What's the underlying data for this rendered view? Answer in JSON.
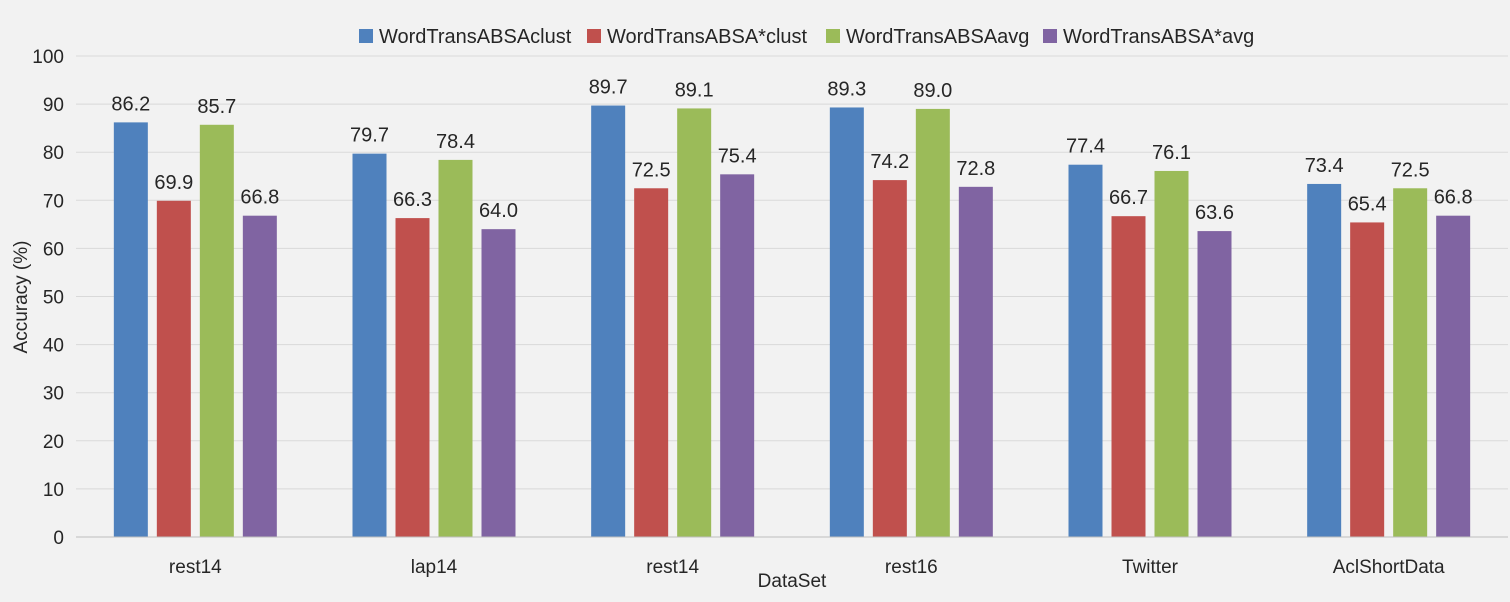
{
  "chart_data": {
    "type": "bar",
    "xlabel": "DataSet",
    "ylabel": "Accuracy (%)",
    "ylim": [
      0,
      100
    ],
    "ytick_step": 10,
    "grid": true,
    "legend_position": "top-center",
    "categories": [
      "rest14",
      "lap14",
      "rest14",
      "rest16",
      "Twitter",
      "AclShortData"
    ],
    "series": [
      {
        "name": "WordTransABSAclust",
        "color": "#4f81bd",
        "values": [
          86.2,
          79.7,
          89.7,
          89.3,
          77.4,
          73.4
        ],
        "labels": [
          "86.2",
          "79.7",
          "89.7",
          "89.3",
          "77.4",
          "73.4"
        ]
      },
      {
        "name": "WordTransABSA*clust",
        "color": "#c0504d",
        "values": [
          69.9,
          66.3,
          72.5,
          74.2,
          66.7,
          65.4
        ],
        "labels": [
          "69.9",
          "66.3",
          "72.5",
          "74.2",
          "66.7",
          "65.4"
        ]
      },
      {
        "name": "WordTransABSAavg",
        "color": "#9bbb59",
        "values": [
          85.7,
          78.4,
          89.1,
          89.0,
          76.1,
          72.5
        ],
        "labels": [
          "85.7",
          "78.4",
          "89.1",
          "89.0",
          "76.1",
          "72.5"
        ]
      },
      {
        "name": "WordTransABSA*avg",
        "color": "#8064a2",
        "values": [
          66.8,
          64.0,
          75.4,
          72.8,
          63.6,
          66.8
        ],
        "labels": [
          "66.8",
          "64.0",
          "75.4",
          "72.8",
          "63.6",
          "66.8"
        ]
      }
    ]
  }
}
